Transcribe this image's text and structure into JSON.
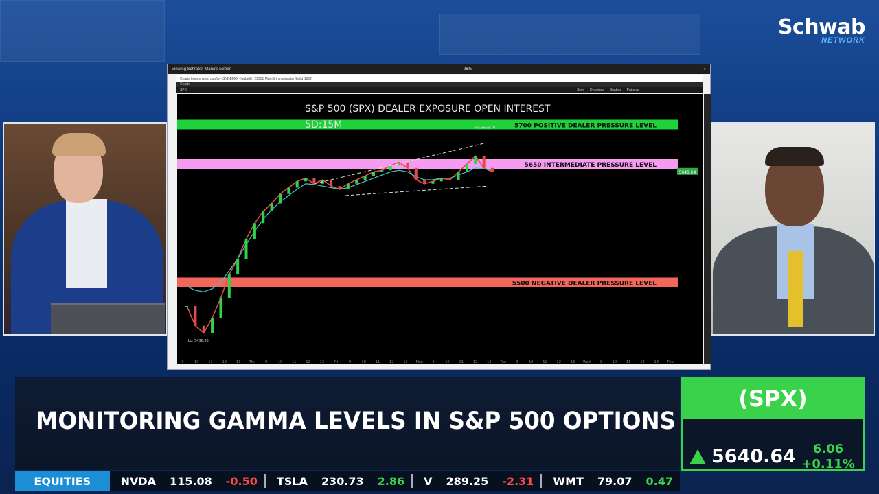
{
  "brand": {
    "name": "Schwab",
    "sub": "NETWORK"
  },
  "shared_screen": {
    "share_title": "Viewing Schrater, Maria's screen",
    "zoom": "96%",
    "window_title": "Charts from shared config - SNDEMO - Isabelle_29951 Main@thinkorswim [build 1982]",
    "tab": "Charts",
    "symbol": "SPX",
    "price": "5640.64",
    "toolbar_items": [
      "Style",
      "Drawings",
      "Studies",
      "Patterns"
    ]
  },
  "chart_data": {
    "type": "line",
    "title": "S&P 500 (SPX) DEALER EXPOSURE OPEN INTEREST",
    "subtitle": "5D:15M",
    "levels": [
      {
        "label": "5700 POSITIVE DEALER PRESSURE LEVEL",
        "value": 5700,
        "color": "#1ed238"
      },
      {
        "label": "5650 INTERMEDIATE PRESSURE LEVEL",
        "value": 5650,
        "color": "#f59cf0"
      },
      {
        "label": "5500 NEGATIVE DEALER PRESSURE LEVEL",
        "value": 5500,
        "color": "#f2665c"
      }
    ],
    "annotations": [
      "Hi: 5669.70",
      "Lo: 5436.86"
    ],
    "price_tag": "5640.64",
    "x_ticks": [
      "9",
      "10",
      "11",
      "12",
      "13",
      "Thu",
      "9",
      "10",
      "11",
      "12",
      "13",
      "Fri",
      "9",
      "10",
      "11",
      "12",
      "13",
      "Mon",
      "9",
      "10",
      "11",
      "12",
      "13",
      "Tue",
      "9",
      "10",
      "11",
      "12",
      "13",
      "Wed",
      "9",
      "10",
      "11",
      "12",
      "13",
      "Thu"
    ],
    "series": [
      {
        "name": "price",
        "values": [
          5470,
          5445,
          5436,
          5455,
          5480,
          5510,
          5530,
          5555,
          5575,
          5590,
          5600,
          5612,
          5620,
          5628,
          5632,
          5625,
          5630,
          5622,
          5618,
          5625,
          5630,
          5635,
          5640,
          5642,
          5648,
          5652,
          5645,
          5630,
          5625,
          5628,
          5632,
          5630,
          5640,
          5650,
          5660,
          5645,
          5640
        ]
      },
      {
        "name": "average",
        "values": [
          5495,
          5490,
          5488,
          5492,
          5500,
          5515,
          5530,
          5548,
          5565,
          5580,
          5592,
          5602,
          5610,
          5618,
          5625,
          5624,
          5622,
          5620,
          5618,
          5620,
          5624,
          5628,
          5632,
          5636,
          5640,
          5642,
          5640,
          5634,
          5630,
          5630,
          5632,
          5632,
          5636,
          5640,
          5645,
          5644,
          5642
        ]
      }
    ],
    "ylim": [
      5410,
      5730
    ]
  },
  "lower_third": {
    "headline": "MONITORING GAMMA LEVELS IN S&P 500 OPTIONS"
  },
  "quote": {
    "symbol": "(SPX)",
    "price": "5640.64",
    "change": "6.06",
    "change_pct": "+0.11%",
    "accent": "#39d24a"
  },
  "ticker": {
    "label": "EQUITIES",
    "items": [
      {
        "symbol": "NVDA",
        "price": "115.08",
        "change": "-0.50",
        "dir": "neg"
      },
      {
        "symbol": "TSLA",
        "price": "230.73",
        "change": "2.86",
        "dir": "pos"
      },
      {
        "symbol": "V",
        "price": "289.25",
        "change": "-2.31",
        "dir": "neg"
      },
      {
        "symbol": "WMT",
        "price": "79.07",
        "change": "0.47",
        "dir": "pos"
      }
    ]
  }
}
